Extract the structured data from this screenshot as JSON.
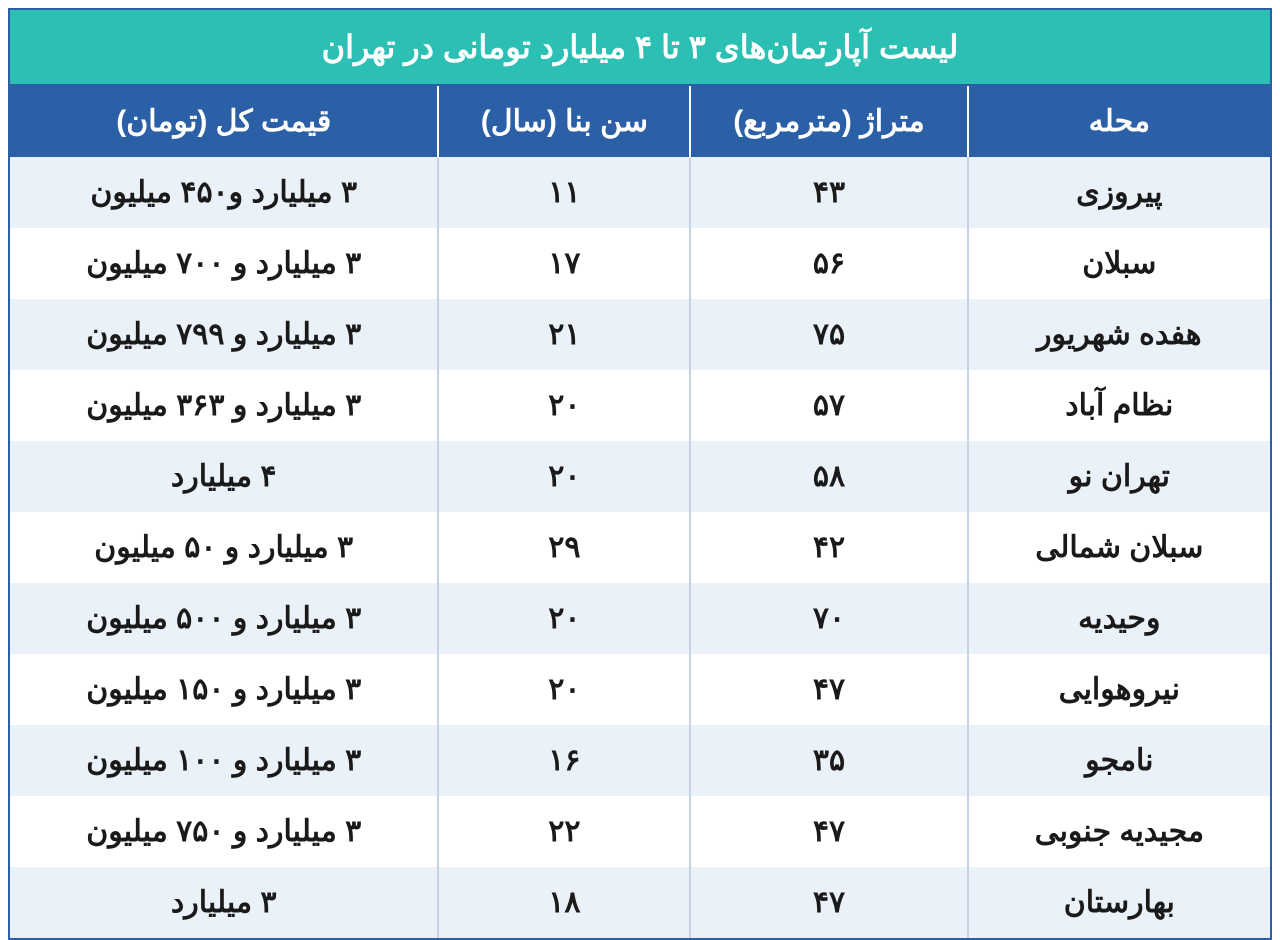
{
  "table": {
    "type": "table",
    "title": "لیست آپارتمان‌های ۳ تا ۴ میلیارد تومانی در تهران",
    "colors": {
      "title_bg": "#2cbfb4",
      "title_text": "#ffffff",
      "header_bg": "#2b5fa6",
      "header_text": "#ffffff",
      "row_odd_bg": "#eaf1f8",
      "row_even_bg": "#ffffff",
      "cell_text": "#1a1a1a",
      "border": "#2b5fa6",
      "cell_border": "#c6d3e3"
    },
    "fontsize": {
      "title": 32,
      "header": 30,
      "cell": 30
    },
    "columns": [
      {
        "key": "neighborhood",
        "label": "محله",
        "width_pct": 24
      },
      {
        "key": "area",
        "label": "متراژ (مترمربع)",
        "width_pct": 22
      },
      {
        "key": "age",
        "label": "سن بنا (سال)",
        "width_pct": 20
      },
      {
        "key": "price",
        "label": "قیمت کل (تومان)",
        "width_pct": 34
      }
    ],
    "rows": [
      {
        "neighborhood": "پیروزی",
        "area": "۴۳",
        "age": "۱۱",
        "price": "۳ میلیارد و۴۵۰ میلیون"
      },
      {
        "neighborhood": "سبلان",
        "area": "۵۶",
        "age": "۱۷",
        "price": "۳ میلیارد و ۷۰۰ میلیون"
      },
      {
        "neighborhood": "هفده شهریور",
        "area": "۷۵",
        "age": "۲۱",
        "price": "۳ میلیارد و ۷۹۹ میلیون"
      },
      {
        "neighborhood": "نظام آباد",
        "area": "۵۷",
        "age": "۲۰",
        "price": "۳ میلیارد و ۳۶۳ میلیون"
      },
      {
        "neighborhood": "تهران نو",
        "area": "۵۸",
        "age": "۲۰",
        "price": "۴ میلیارد"
      },
      {
        "neighborhood": "سبلان شمالی",
        "area": "۴۲",
        "age": "۲۹",
        "price": "۳ میلیارد و ۵۰ میلیون"
      },
      {
        "neighborhood": "وحیدیه",
        "area": "۷۰",
        "age": "۲۰",
        "price": "۳ میلیارد و ۵۰۰ میلیون"
      },
      {
        "neighborhood": "نیروهوایی",
        "area": "۴۷",
        "age": "۲۰",
        "price": "۳ میلیارد و ۱۵۰ میلیون"
      },
      {
        "neighborhood": "نامجو",
        "area": "۳۵",
        "age": "۱۶",
        "price": "۳ میلیارد و ۱۰۰ میلیون"
      },
      {
        "neighborhood": "مجیدیه جنوبی",
        "area": "۴۷",
        "age": "۲۲",
        "price": "۳ میلیارد و ۷۵۰ میلیون"
      },
      {
        "neighborhood": "بهارستان",
        "area": "۴۷",
        "age": "۱۸",
        "price": "۳ میلیارد"
      }
    ]
  }
}
